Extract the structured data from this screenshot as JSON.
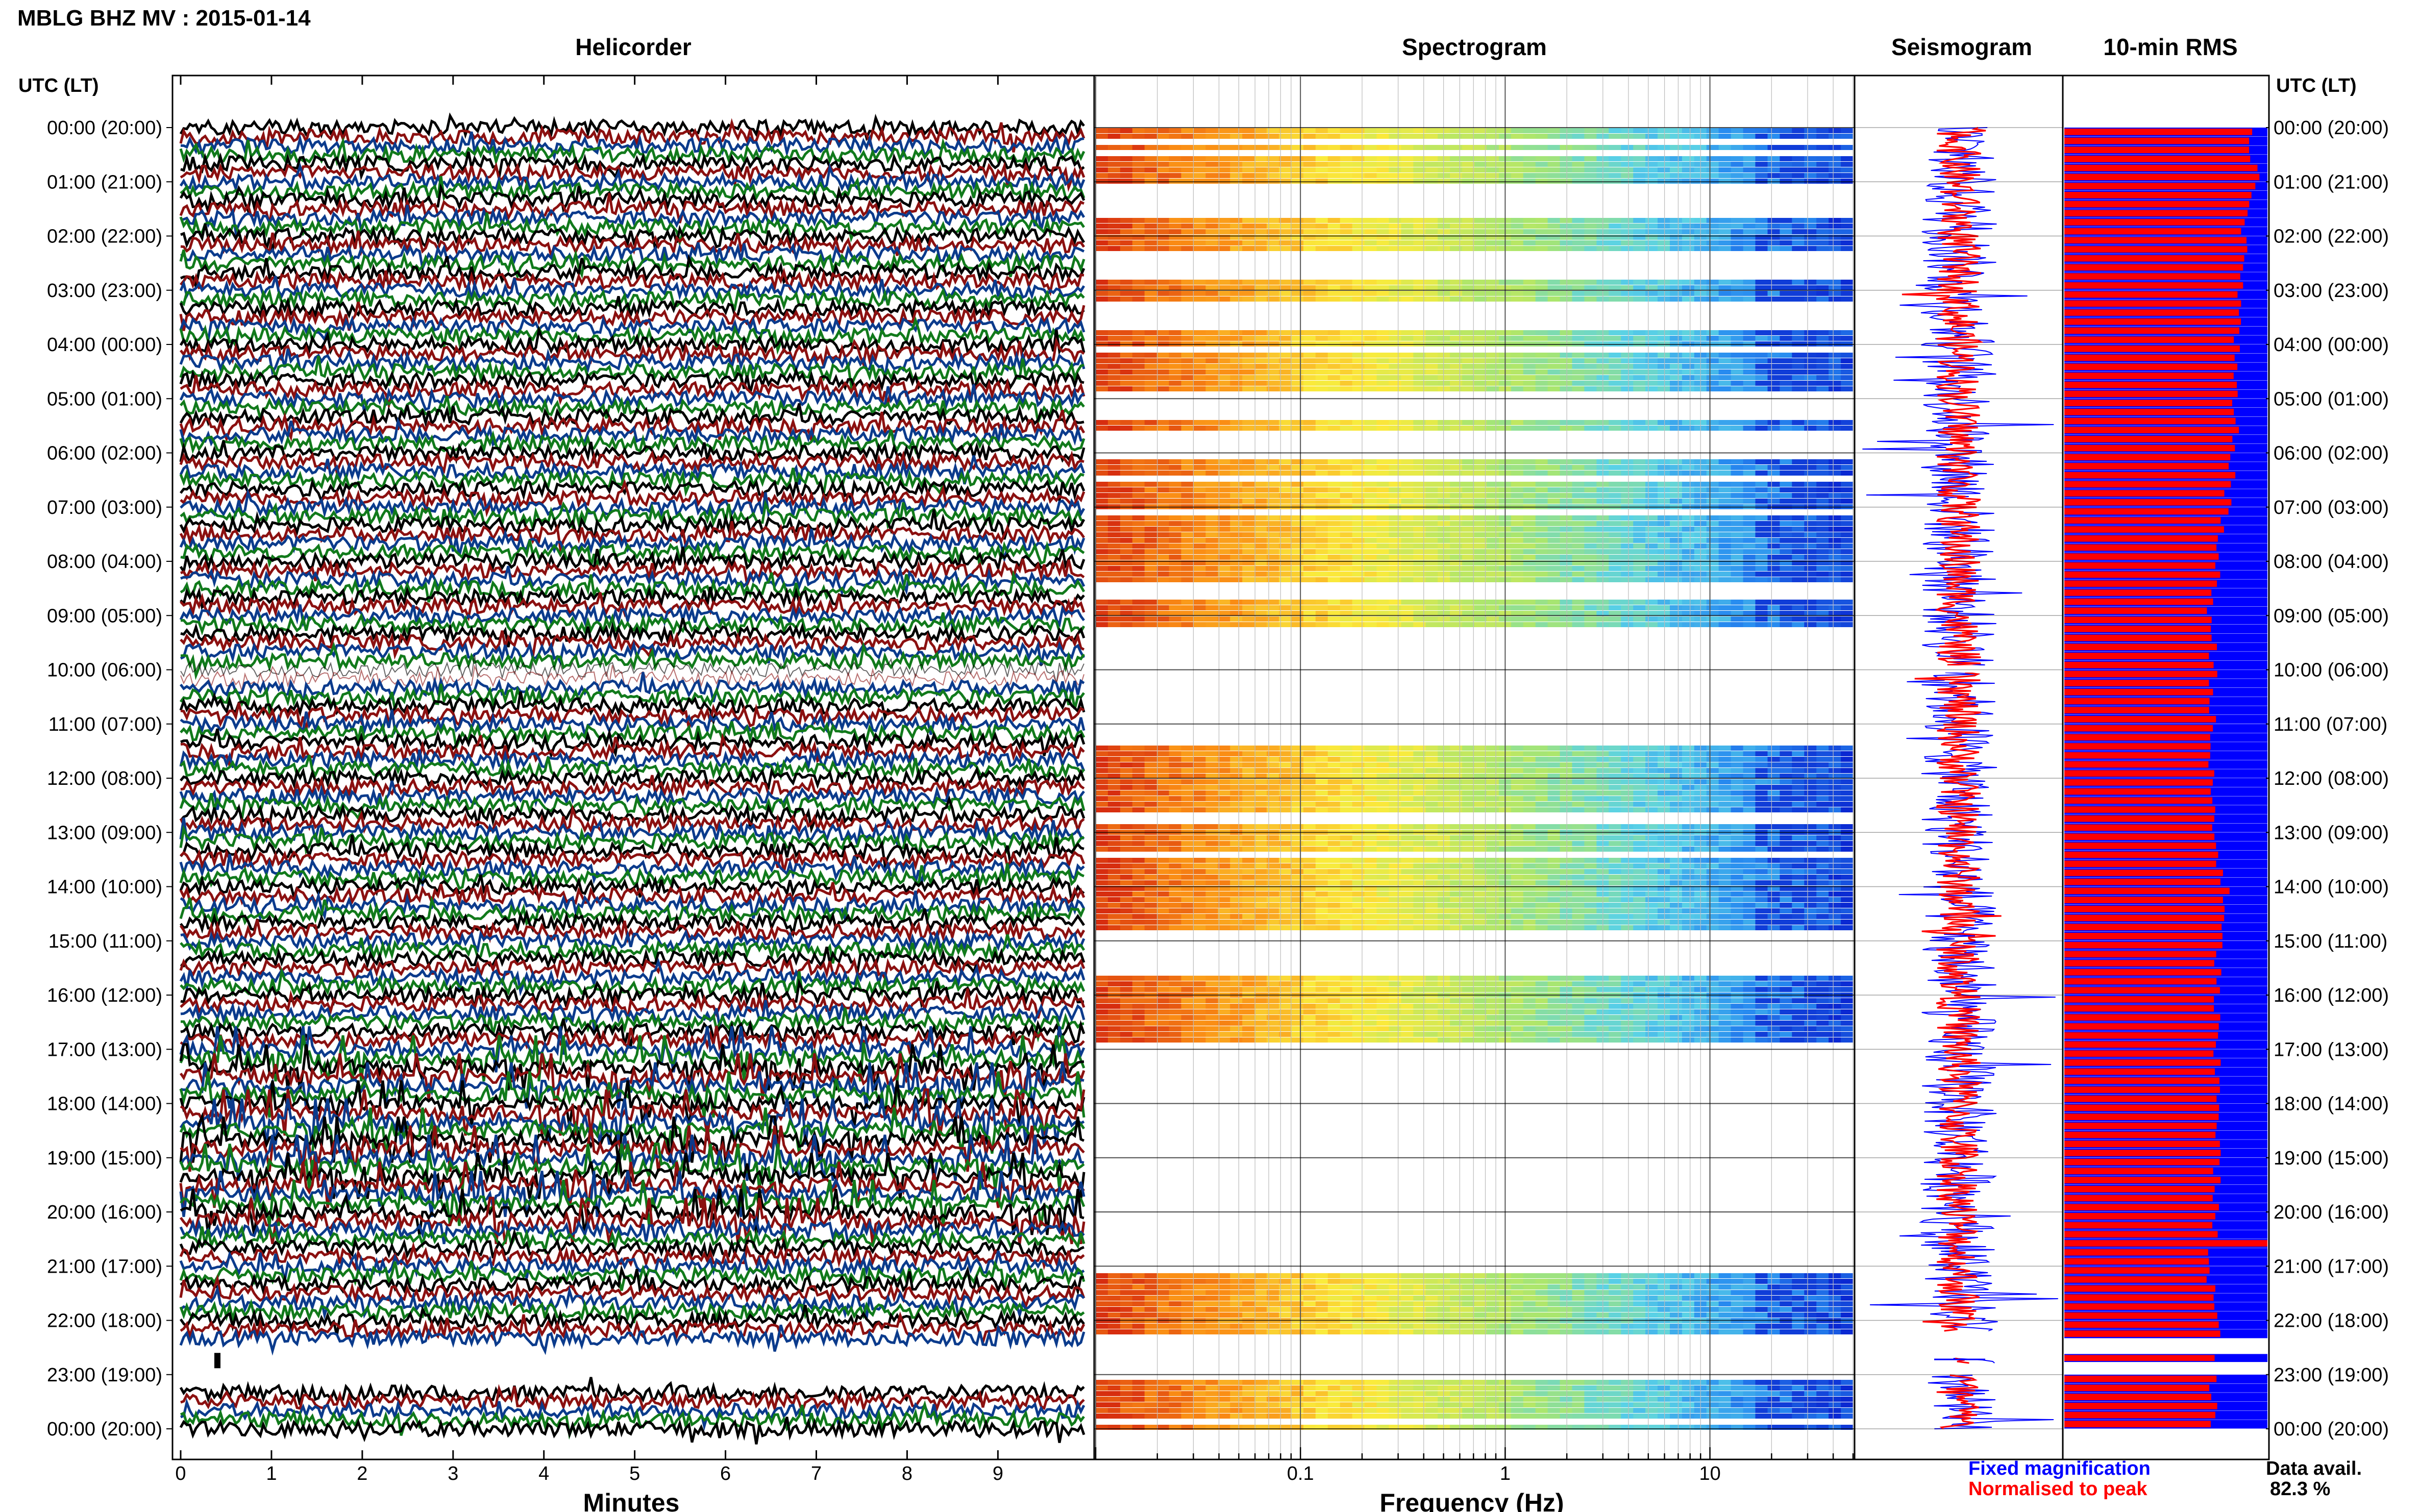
{
  "header": {
    "title": "MBLG BHZ MV : 2015-01-14"
  },
  "panels": {
    "helicorder": "Helicorder",
    "spectrogram": "Spectrogram",
    "seismogram": "Seismogram",
    "rms": "10-min RMS"
  },
  "axis_labels": {
    "left_header": "UTC (LT)",
    "right_header": "UTC (LT)",
    "helicorder_x": "Minutes",
    "spectrogram_x": "Frequency (Hz)"
  },
  "legend": {
    "fixed": "Fixed magnification",
    "normalised": "Normalised to peak",
    "data_avail_label": "Data avail.",
    "data_avail_value": "82.3 %"
  },
  "colors": {
    "trace_cycle": [
      "#000000",
      "#8b1010",
      "#0b3b8c",
      "#117a1b"
    ],
    "fixed_blue": "#0000ff",
    "normalised_red": "#ff0000"
  },
  "chart_data": [
    {
      "type": "line",
      "panel": "helicorder",
      "xlabel": "Minutes",
      "x_ticks": [
        "0",
        "1",
        "2",
        "3",
        "4",
        "5",
        "6",
        "7",
        "8",
        "9"
      ],
      "xlim": [
        0,
        10
      ],
      "hour_labels": [
        "00:00 (20:00)",
        "01:00 (21:00)",
        "02:00 (22:00)",
        "03:00 (23:00)",
        "04:00 (00:00)",
        "05:00 (01:00)",
        "06:00 (02:00)",
        "07:00 (03:00)",
        "08:00 (04:00)",
        "09:00 (05:00)",
        "10:00 (06:00)",
        "11:00 (07:00)",
        "12:00 (08:00)",
        "13:00 (09:00)",
        "14:00 (10:00)",
        "15:00 (11:00)",
        "16:00 (12:00)",
        "17:00 (13:00)",
        "18:00 (14:00)",
        "19:00 (15:00)",
        "20:00 (16:00)",
        "21:00 (17:00)",
        "22:00 (18:00)",
        "23:00 (19:00)",
        "00:00 (20:00)"
      ],
      "traces_per_hour": 6,
      "gap_hours": [
        22.4,
        23.2
      ],
      "spiky_hours": [
        17.0,
        20.3
      ],
      "blank_band_hours": [
        9.9,
        10.3
      ]
    },
    {
      "type": "heatmap",
      "panel": "spectrogram",
      "xlabel": "Frequency (Hz)",
      "x_scale": "log",
      "xlim": [
        0.01,
        50
      ],
      "x_ticks": [
        "0.1",
        "1",
        "10"
      ],
      "data_present_hours": [
        [
          0.0,
          1.0
        ],
        [
          1.6,
          2.2
        ],
        [
          2.8,
          3.2
        ],
        [
          3.7,
          4.8
        ],
        [
          5.3,
          5.5
        ],
        [
          6.1,
          8.3
        ],
        [
          8.7,
          9.2
        ],
        [
          11.3,
          12.6
        ],
        [
          12.8,
          14.8
        ],
        [
          15.6,
          16.9
        ],
        [
          21.1,
          22.2
        ],
        [
          23.0,
          24.0
        ]
      ],
      "color_trend": "warm (orange/yellow) at low frequency, grading to green and blue above 1 Hz, deep blue bands near 30 Hz"
    },
    {
      "type": "line",
      "panel": "seismogram",
      "series": [
        {
          "name": "Fixed magnification",
          "color": "#0000ff"
        },
        {
          "name": "Normalised to peak",
          "color": "#ff0000"
        }
      ],
      "gap_hours": [
        [
          22.2,
          22.7
        ],
        [
          22.8,
          23.0
        ]
      ]
    },
    {
      "type": "bar",
      "panel": "10-min RMS",
      "orientation": "horizontal",
      "normalised_to_peak_fraction_profile": [
        [
          0,
          0.92
        ],
        [
          1,
          0.95
        ],
        [
          2,
          0.88
        ],
        [
          3,
          0.87
        ],
        [
          4,
          0.84
        ],
        [
          5,
          0.83
        ],
        [
          6,
          0.84
        ],
        [
          7,
          0.79
        ],
        [
          8,
          0.75
        ],
        [
          9,
          0.72
        ],
        [
          10,
          0.74
        ],
        [
          11,
          0.72
        ],
        [
          12,
          0.72
        ],
        [
          13,
          0.74
        ],
        [
          14,
          0.79
        ],
        [
          15,
          0.76
        ],
        [
          16,
          0.75
        ],
        [
          17,
          0.74
        ],
        [
          18,
          0.77
        ],
        [
          19,
          0.75
        ],
        [
          20,
          0.74
        ],
        [
          21,
          0.72
        ],
        [
          22,
          0.75
        ],
        [
          23,
          0.74
        ],
        [
          24,
          0.72
        ]
      ],
      "peak_hour": 20.5,
      "gap_hours": [
        22.2,
        23.0
      ]
    }
  ]
}
